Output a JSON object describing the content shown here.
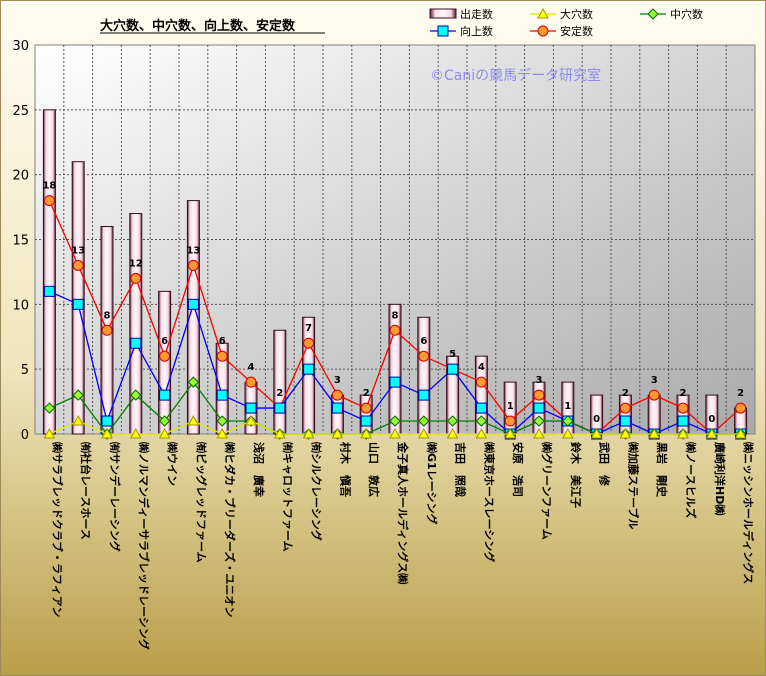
{
  "chart_data": {
    "type": "bar",
    "title": "大穴数、中穴数、向上数、安定数",
    "watermark": "©Caniの競馬データ研究室",
    "ylim": [
      0,
      30
    ],
    "yticks": [
      0,
      5,
      10,
      15,
      20,
      25,
      30
    ],
    "grid": true,
    "legend_placement": "top-right",
    "categories": [
      "㈱サラブレッドクラブ・ラフィアン",
      "㈲社台レースホース",
      "㈲サンデーレーシング",
      "㈱ノルマンディーサラブレッドレーシング",
      "㈱ウイン",
      "㈲ビッグレッドファーム",
      "㈱ヒダカ・ブリーダーズ・ユニオン",
      "浅沼　廣幸",
      "㈲キャロットファーム",
      "㈲シルクレーシング",
      "村木　愼吾",
      "山口　敦広",
      "金子真人ホールディングス㈱",
      "㈱G1レーシング",
      "吉田　照哉",
      "㈱東京ホースレーシング",
      "安原　浩司",
      "㈱グリーンファーム",
      "鈴木　美江子",
      "武田　修",
      "㈱加藤ステーブル",
      "黒岩　剛史",
      "㈱ノースヒルズ",
      "廣崎利洋HD㈱",
      "㈱ニッシンホールディングス"
    ],
    "series": [
      {
        "name": "出走数",
        "kind": "bar",
        "color": "#f6e4ee",
        "values": [
          25,
          21,
          16,
          17,
          11,
          18,
          7,
          4,
          8,
          9,
          3,
          3,
          10,
          9,
          6,
          6,
          4,
          4,
          4,
          3,
          3,
          3,
          3,
          3,
          2
        ]
      },
      {
        "name": "大穴数",
        "kind": "line",
        "color": "#ffff00",
        "marker": "triangle",
        "values": [
          0,
          1,
          0,
          0,
          0,
          1,
          0,
          1,
          0,
          0,
          0,
          0,
          0,
          0,
          0,
          0,
          0,
          0,
          0,
          0,
          0,
          0,
          0,
          0,
          0
        ]
      },
      {
        "name": "中穴数",
        "kind": "line",
        "color": "#008000",
        "marker": "diamond",
        "values": [
          2,
          3,
          0,
          3,
          1,
          4,
          1,
          1,
          0,
          0,
          0,
          0,
          1,
          1,
          1,
          1,
          0,
          1,
          1,
          0,
          0,
          0,
          0,
          0,
          0
        ]
      },
      {
        "name": "向上数",
        "kind": "line",
        "color": "#0000ff",
        "marker": "square",
        "values": [
          11,
          10,
          1,
          7,
          3,
          10,
          3,
          2,
          2,
          5,
          2,
          1,
          4,
          3,
          5,
          2,
          0,
          2,
          1,
          0,
          1,
          0,
          1,
          0,
          0
        ]
      },
      {
        "name": "安定数",
        "kind": "line",
        "color": "#ff0000",
        "marker": "circle",
        "values": [
          18,
          13,
          8,
          12,
          6,
          13,
          6,
          4,
          2,
          7,
          3,
          2,
          8,
          6,
          5,
          4,
          1,
          3,
          1,
          0,
          2,
          3,
          2,
          0,
          2
        ]
      }
    ],
    "data_labels": {
      "series": "安定数",
      "values": [
        18,
        13,
        8,
        12,
        6,
        13,
        6,
        4,
        2,
        7,
        3,
        2,
        8,
        6,
        5,
        4,
        1,
        3,
        1,
        0,
        2,
        3,
        2,
        0,
        2
      ]
    }
  }
}
